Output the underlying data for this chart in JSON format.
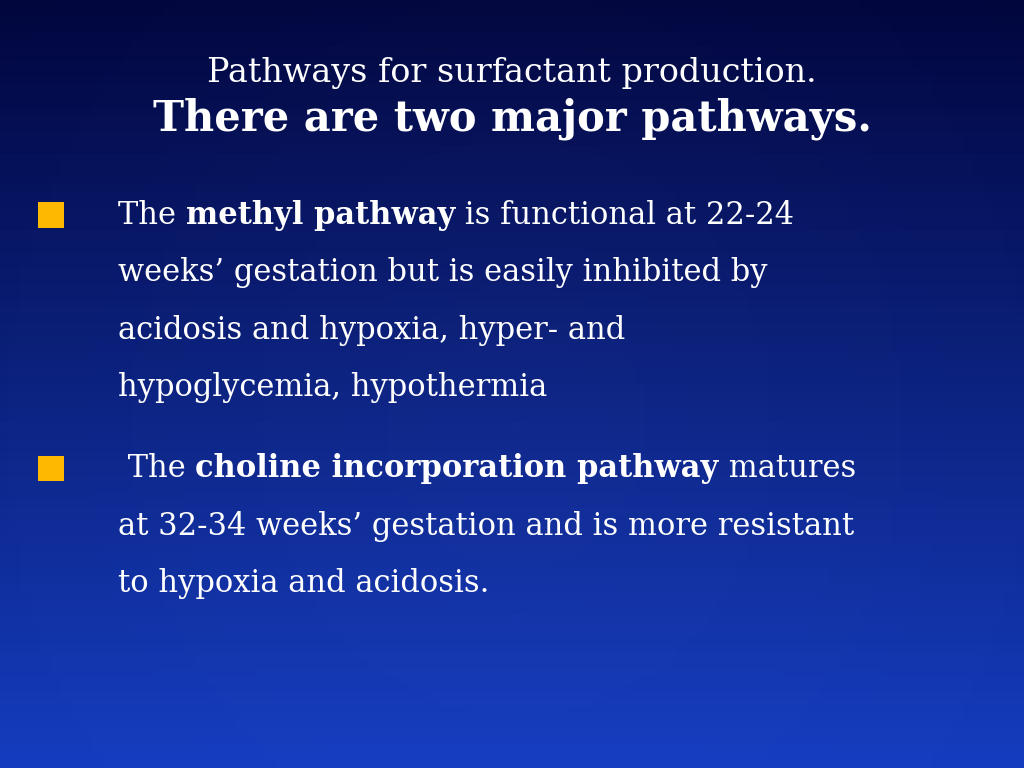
{
  "title_line1": "Pathways for surfactant production.",
  "title_line2": "There are two major pathways.",
  "title_color": "#FFFFFF",
  "title_line1_fontsize": 24,
  "title_line2_fontsize": 30,
  "bullet_color": "#FFB800",
  "text_color": "#FFFFFF",
  "bullet1_parts": [
    {
      "text": "The ",
      "bold": false
    },
    {
      "text": "methyl pathway",
      "bold": true
    },
    {
      "text": " is functional at 22-24",
      "bold": false
    }
  ],
  "bullet1_lines": [
    "weeks’ gestation but is easily inhibited by",
    "acidosis and hypoxia, hyper- and",
    "hypoglycemia, hypothermia"
  ],
  "bullet2_parts": [
    {
      "text": " The ",
      "bold": false
    },
    {
      "text": "choline incorporation pathway",
      "bold": true
    },
    {
      "text": " matures",
      "bold": false
    }
  ],
  "bullet2_lines": [
    "at 32-34 weeks’ gestation and is more resistant",
    "to hypoxia and acidosis."
  ],
  "body_fontsize": 22,
  "figsize": [
    10.24,
    7.68
  ],
  "dpi": 100
}
